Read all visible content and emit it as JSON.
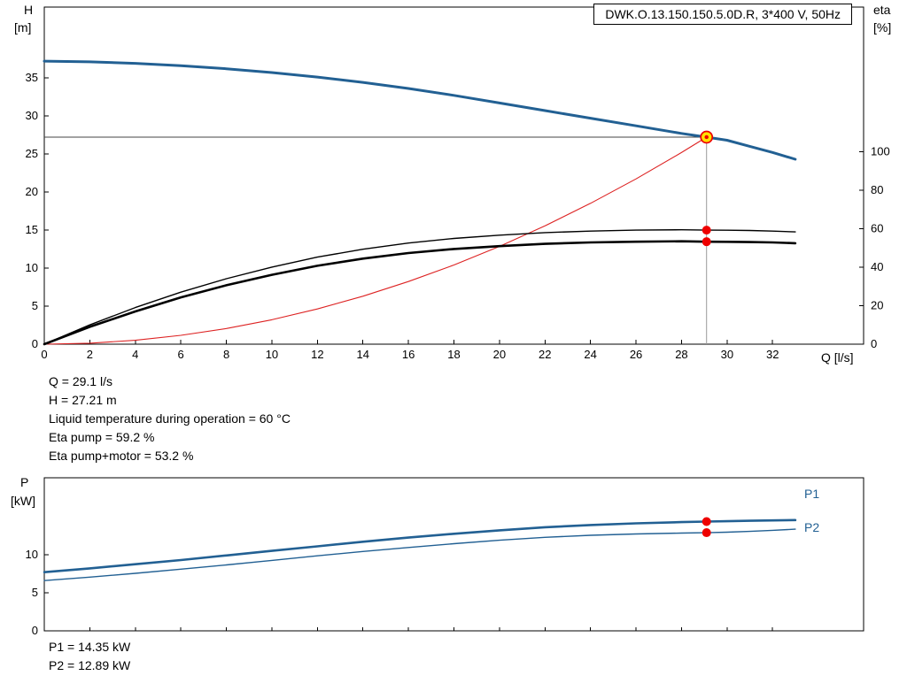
{
  "title": "DWK.O.13.150.150.5.0D.R, 3*400 V, 50Hz",
  "axis_labels": {
    "h": "H",
    "h_unit": "[m]",
    "eta": "eta",
    "eta_unit": "[%]",
    "q": "Q [l/s]",
    "p": "P",
    "p_unit": "[kW]"
  },
  "duty_text": [
    "Q = 29.1 l/s",
    "H = 27.21 m",
    "Liquid temperature during operation = 60 °C",
    "Eta pump = 59.2 %",
    "Eta pump+motor = 53.2 %"
  ],
  "power_text": [
    "P1 = 14.35 kW",
    "P2 = 12.89 kW"
  ],
  "series_labels": {
    "p1": "P1",
    "p2": "P2"
  },
  "colors": {
    "curve_blue": "#226093",
    "eta_black": "#000000",
    "system_red": "#dd2222",
    "dot_red": "#ee0000",
    "duty_fill": "#ffe000",
    "crosshair_h": "#444444",
    "crosshair_v": "#999999",
    "frame": "#000000"
  },
  "chart_data": [
    {
      "type": "line",
      "title": "DWK.O.13.150.150.5.0D.R, 3*400 V, 50Hz",
      "xlabel": "Q [l/s]",
      "ylabel_left": "H [m]",
      "ylabel_right": "eta [%]",
      "xlim": [
        0,
        36
      ],
      "xticks": [
        0,
        2,
        4,
        6,
        8,
        10,
        12,
        14,
        16,
        18,
        20,
        22,
        24,
        26,
        28,
        30,
        32
      ],
      "ylim_left": [
        0,
        44.3
      ],
      "yticks_left": [
        0,
        5,
        10,
        15,
        20,
        25,
        30,
        35
      ],
      "ylim_right": [
        0,
        175
      ],
      "yticks_right": [
        0,
        20,
        40,
        60,
        80,
        100
      ],
      "grid": false,
      "legend": "none",
      "series": [
        {
          "name": "system-curve",
          "axis": "left",
          "color_key": "system_red",
          "width": 1.1,
          "x": [
            0,
            2,
            4,
            6,
            8,
            10,
            12,
            14,
            16,
            18,
            20,
            22,
            24,
            26,
            28,
            29.1
          ],
          "y": [
            0,
            0.13,
            0.51,
            1.16,
            2.06,
            3.21,
            4.63,
            6.3,
            8.23,
            10.41,
            12.85,
            15.55,
            18.51,
            21.72,
            25.19,
            27.21
          ]
        },
        {
          "name": "eta-pump-curve",
          "axis": "right",
          "color_key": "eta_black",
          "width": 1.4,
          "x": [
            0,
            2,
            4,
            6,
            8,
            10,
            12,
            14,
            16,
            18,
            20,
            22,
            24,
            26,
            28,
            29.1,
            30,
            31,
            32,
            33
          ],
          "y": [
            0,
            10,
            19,
            27,
            34,
            40,
            45.2,
            49.3,
            52.5,
            54.9,
            56.6,
            57.9,
            58.7,
            59.2,
            59.4,
            59.2,
            59.15,
            59.0,
            58.7,
            58.3
          ]
        },
        {
          "name": "eta-pump-motor-curve",
          "axis": "right",
          "color_key": "eta_black",
          "width": 2.6,
          "x": [
            0,
            2,
            4,
            6,
            8,
            10,
            12,
            14,
            16,
            18,
            20,
            22,
            24,
            26,
            28,
            29.1,
            30,
            31,
            32,
            33
          ],
          "y": [
            0,
            9,
            17,
            24.3,
            30.6,
            36,
            40.7,
            44.4,
            47.3,
            49.4,
            50.9,
            52.1,
            52.8,
            53.2,
            53.4,
            53.2,
            53.15,
            53.0,
            52.8,
            52.4
          ]
        },
        {
          "name": "head-curve",
          "axis": "left",
          "color_key": "curve_blue",
          "width": 3,
          "x": [
            0,
            2,
            4,
            6,
            8,
            10,
            12,
            14,
            16,
            18,
            20,
            22,
            24,
            26,
            28,
            29.1,
            30,
            31,
            32,
            33
          ],
          "y": [
            37.2,
            37.1,
            36.9,
            36.6,
            36.2,
            35.7,
            35.1,
            34.4,
            33.6,
            32.7,
            31.7,
            30.7,
            29.7,
            28.7,
            27.7,
            27.21,
            26.8,
            26.0,
            25.2,
            24.3
          ]
        }
      ],
      "duty_point": {
        "q": 29.1,
        "h": 27.21,
        "eta_pump": 59.2,
        "eta_pump_motor": 53.2
      }
    },
    {
      "type": "line",
      "ylabel": "P [kW]",
      "xlim": [
        0,
        36
      ],
      "xticks": [
        0,
        2,
        4,
        6,
        8,
        10,
        12,
        14,
        16,
        18,
        20,
        22,
        24,
        26,
        28,
        30,
        32
      ],
      "ylim": [
        0,
        20.1
      ],
      "yticks": [
        0,
        5,
        10
      ],
      "grid": false,
      "series": [
        {
          "name": "P1",
          "color_key": "curve_blue",
          "width": 2.6,
          "x": [
            0,
            2,
            4,
            6,
            8,
            10,
            12,
            14,
            16,
            18,
            20,
            22,
            24,
            26,
            28,
            29.1,
            30,
            31,
            32,
            33
          ],
          "y": [
            7.7,
            8.2,
            8.75,
            9.3,
            9.9,
            10.5,
            11.1,
            11.7,
            12.25,
            12.75,
            13.2,
            13.6,
            13.9,
            14.12,
            14.28,
            14.35,
            14.4,
            14.45,
            14.5,
            14.55
          ]
        },
        {
          "name": "P2",
          "color_key": "curve_blue",
          "width": 1.4,
          "x": [
            0,
            2,
            4,
            6,
            8,
            10,
            12,
            14,
            16,
            18,
            20,
            22,
            24,
            26,
            28,
            29.1,
            30,
            31,
            32,
            33
          ],
          "y": [
            6.6,
            7.05,
            7.55,
            8.1,
            8.65,
            9.25,
            9.85,
            10.42,
            10.95,
            11.45,
            11.9,
            12.28,
            12.55,
            12.72,
            12.84,
            12.89,
            12.95,
            13.06,
            13.2,
            13.35
          ]
        }
      ],
      "duty_points": [
        {
          "series": "P1",
          "q": 29.1,
          "p": 14.35
        },
        {
          "series": "P2",
          "q": 29.1,
          "p": 12.89
        }
      ]
    }
  ]
}
